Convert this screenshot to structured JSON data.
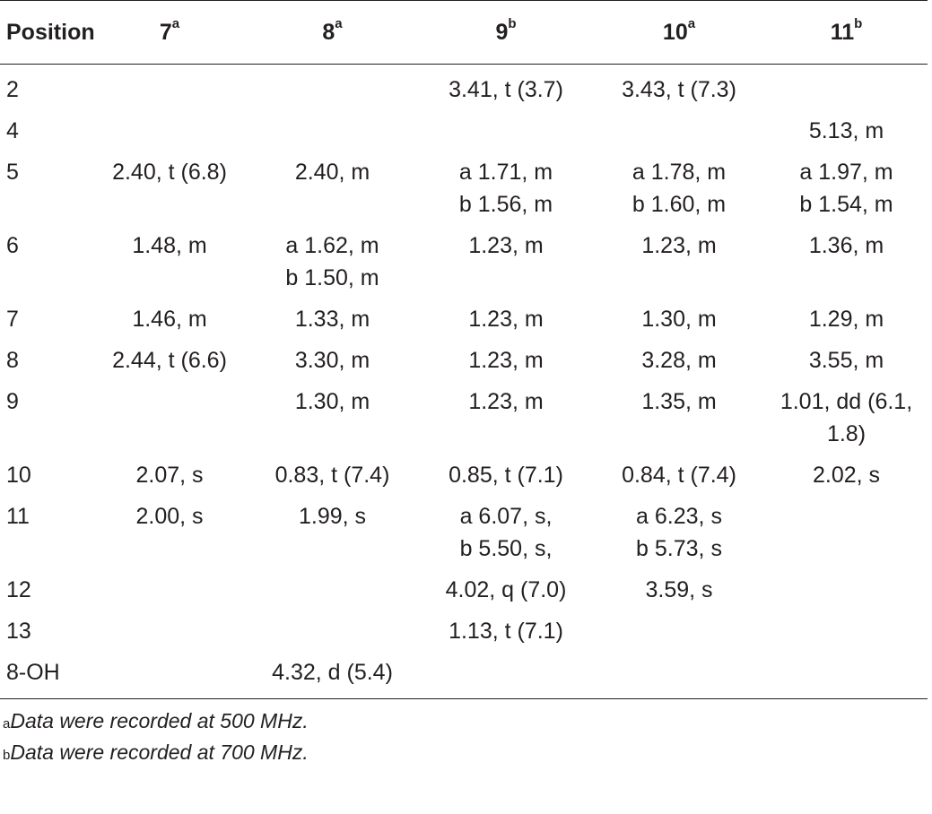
{
  "table": {
    "headers": [
      {
        "label": "Position",
        "sup": ""
      },
      {
        "label": "7",
        "sup": "a"
      },
      {
        "label": "8",
        "sup": "a"
      },
      {
        "label": "9",
        "sup": "b"
      },
      {
        "label": "10",
        "sup": "a"
      },
      {
        "label": "11",
        "sup": "b"
      }
    ],
    "rows": [
      {
        "position": "2",
        "cells": [
          [],
          [],
          [
            "3.41, t (3.7)"
          ],
          [
            "3.43, t (7.3)"
          ],
          []
        ]
      },
      {
        "position": "4",
        "cells": [
          [],
          [],
          [],
          [],
          [
            "5.13, m"
          ]
        ]
      },
      {
        "position": "5",
        "cells": [
          [
            "2.40, t (6.8)"
          ],
          [
            "2.40, m"
          ],
          [
            "a 1.71, m",
            "b 1.56, m"
          ],
          [
            "a 1.78, m",
            "b 1.60, m"
          ],
          [
            "a 1.97, m",
            "b 1.54, m"
          ]
        ]
      },
      {
        "position": "6",
        "cells": [
          [
            "1.48, m"
          ],
          [
            "a 1.62, m",
            "b 1.50, m"
          ],
          [
            "1.23, m"
          ],
          [
            "1.23, m"
          ],
          [
            "1.36, m"
          ]
        ]
      },
      {
        "position": "7",
        "cells": [
          [
            "1.46, m"
          ],
          [
            "1.33, m"
          ],
          [
            "1.23, m"
          ],
          [
            "1.30, m"
          ],
          [
            "1.29, m"
          ]
        ]
      },
      {
        "position": "8",
        "cells": [
          [
            "2.44, t (6.6)"
          ],
          [
            "3.30, m"
          ],
          [
            "1.23, m"
          ],
          [
            "3.28, m"
          ],
          [
            "3.55, m"
          ]
        ]
      },
      {
        "position": "9",
        "cells": [
          [],
          [
            "1.30, m"
          ],
          [
            "1.23, m"
          ],
          [
            "1.35, m"
          ],
          [
            "1.01, dd (6.1,",
            "1.8)"
          ]
        ]
      },
      {
        "position": "10",
        "cells": [
          [
            "2.07, s"
          ],
          [
            "0.83, t (7.4)"
          ],
          [
            "0.85, t (7.1)"
          ],
          [
            "0.84, t (7.4)"
          ],
          [
            "2.02, s"
          ]
        ]
      },
      {
        "position": "11",
        "cells": [
          [
            "2.00, s"
          ],
          [
            "1.99, s"
          ],
          [
            "a 6.07, s,",
            "b 5.50, s,"
          ],
          [
            "a 6.23, s",
            "b 5.73, s"
          ],
          []
        ]
      },
      {
        "position": "12",
        "cells": [
          [],
          [],
          [
            "4.02, q (7.0)"
          ],
          [
            "3.59, s"
          ],
          []
        ]
      },
      {
        "position": "13",
        "cells": [
          [],
          [],
          [
            "1.13, t (7.1)"
          ],
          [],
          []
        ]
      },
      {
        "position": "8-OH",
        "cells": [
          [],
          [
            "4.32, d (5.4)"
          ],
          [],
          [],
          []
        ]
      }
    ]
  },
  "footnotes": [
    {
      "mark": "a",
      "text": "Data were recorded at 500 MHz."
    },
    {
      "mark": "b",
      "text": "Data were recorded at 700 MHz."
    }
  ]
}
